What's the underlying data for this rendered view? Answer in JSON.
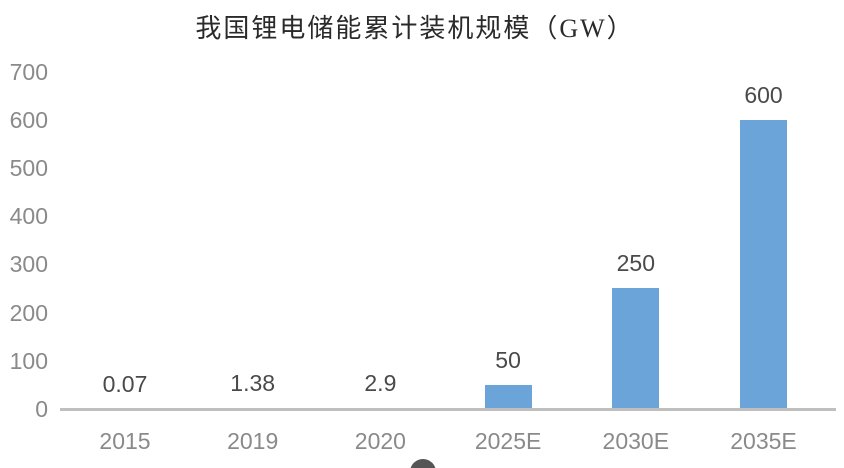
{
  "chart_data": {
    "type": "bar",
    "title": "我国锂电储能累计装机规模（GW）",
    "categories": [
      "2015",
      "2019",
      "2020",
      "2025E",
      "2030E",
      "2035E"
    ],
    "values": [
      0.07,
      1.38,
      2.9,
      50,
      250,
      600
    ],
    "data_labels": [
      "0.07",
      "1.38",
      "2.9",
      "50",
      "250",
      "600"
    ],
    "yticks": [
      0,
      100,
      200,
      300,
      400,
      500,
      600,
      700
    ],
    "ylim": [
      0,
      700
    ],
    "xlabel": "",
    "ylabel": "",
    "grid": false,
    "legend": "none",
    "colors": {
      "bar_fill": "#6ba4d8",
      "axis_line": "#bfbfbf",
      "tick_label": "#8a8a8a",
      "data_label": "#4a4a4a",
      "title": "#2a2a2a",
      "background": "#ffffff",
      "footer_mark": "#555555"
    }
  },
  "decorations": {
    "footer_mark_icon": "partial-circle-mark"
  }
}
